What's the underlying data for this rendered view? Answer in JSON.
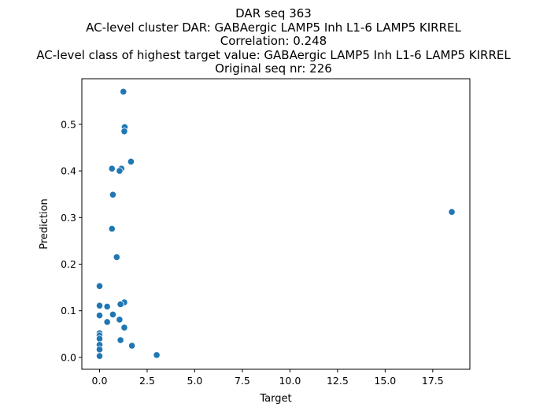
{
  "chart_data": {
    "type": "scatter",
    "title_lines": [
      "DAR seq 363",
      "AC-level cluster DAR: GABAergic LAMP5 Inh L1-6 LAMP5 KIRREL",
      "Correlation: 0.248",
      "AC-level class of highest target value: GABAergic LAMP5 Inh L1-6 LAMP5 KIRREL",
      "Original seq nr: 226"
    ],
    "xlabel": "Target",
    "ylabel": "Prediction",
    "xlim": [
      -0.93,
      19.45
    ],
    "ylim": [
      -0.0255,
      0.5978
    ],
    "xticks": [
      0.0,
      2.5,
      5.0,
      7.5,
      10.0,
      12.5,
      15.0,
      17.5
    ],
    "xtick_labels": [
      "0.0",
      "2.5",
      "5.0",
      "7.5",
      "10.0",
      "12.5",
      "15.0",
      "17.5"
    ],
    "yticks": [
      0.0,
      0.1,
      0.2,
      0.3,
      0.4,
      0.5
    ],
    "ytick_labels": [
      "0.0",
      "0.1",
      "0.2",
      "0.3",
      "0.4",
      "0.5"
    ],
    "grid": false,
    "marker_color": "#1f77b4",
    "points": [
      {
        "x": 1.25,
        "y": 0.57
      },
      {
        "x": 1.32,
        "y": 0.494
      },
      {
        "x": 1.3,
        "y": 0.485
      },
      {
        "x": 1.65,
        "y": 0.42
      },
      {
        "x": 0.65,
        "y": 0.405
      },
      {
        "x": 1.15,
        "y": 0.405
      },
      {
        "x": 1.05,
        "y": 0.4
      },
      {
        "x": 0.7,
        "y": 0.349
      },
      {
        "x": 0.65,
        "y": 0.276
      },
      {
        "x": 18.5,
        "y": 0.312
      },
      {
        "x": 0.9,
        "y": 0.215
      },
      {
        "x": 0.0,
        "y": 0.153
      },
      {
        "x": 1.3,
        "y": 0.118
      },
      {
        "x": 1.1,
        "y": 0.114
      },
      {
        "x": 0.0,
        "y": 0.111
      },
      {
        "x": 0.4,
        "y": 0.109
      },
      {
        "x": 0.7,
        "y": 0.092
      },
      {
        "x": 0.0,
        "y": 0.09
      },
      {
        "x": 1.05,
        "y": 0.081
      },
      {
        "x": 0.4,
        "y": 0.076
      },
      {
        "x": 1.3,
        "y": 0.064
      },
      {
        "x": 0.0,
        "y": 0.052
      },
      {
        "x": 0.0,
        "y": 0.047
      },
      {
        "x": 0.0,
        "y": 0.04
      },
      {
        "x": 1.1,
        "y": 0.037
      },
      {
        "x": 0.0,
        "y": 0.027
      },
      {
        "x": 1.7,
        "y": 0.025
      },
      {
        "x": 0.0,
        "y": 0.017
      },
      {
        "x": 3.0,
        "y": 0.005
      },
      {
        "x": 0.0,
        "y": 0.003
      }
    ]
  }
}
